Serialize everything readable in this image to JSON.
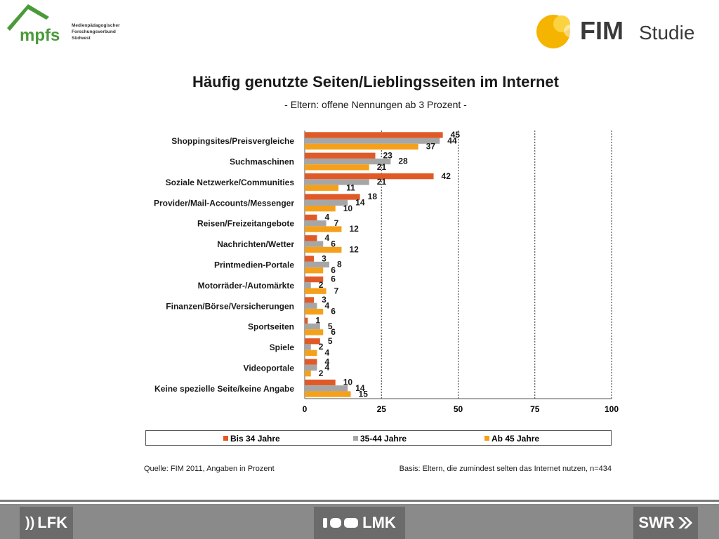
{
  "header": {
    "logo_left": {
      "name": "mpfs",
      "sub_lines": [
        "Medienpädagogischer",
        "Forschungsverbund",
        "Südwest"
      ],
      "color": "#4a9a3a"
    },
    "logo_right": {
      "name_bold": "FIM",
      "name_light": "Studie",
      "color": "#f5b400"
    }
  },
  "chart_data": {
    "type": "bar",
    "orientation": "horizontal",
    "title": "Häufig genutzte Seiten/Lieblingsseiten im Internet",
    "subtitle": "- Eltern: offene Nennungen ab 3 Prozent -",
    "categories": [
      "Shoppingsites/Preisvergleiche",
      "Suchmaschinen",
      "Soziale Netzwerke/Communities",
      "Provider/Mail-Accounts/Messenger",
      "Reisen/Freizeitangebote",
      "Nachrichten/Wetter",
      "Printmedien-Portale",
      "Motorräder-/Automärkte",
      "Finanzen/Börse/Versicherungen",
      "Sportseiten",
      "Spiele",
      "Videoportale",
      "Keine spezielle Seite/keine  Angabe"
    ],
    "series": [
      {
        "name": "Bis 34  Jahre",
        "color": "#e05a28",
        "values": [
          45,
          23,
          42,
          18,
          4,
          4,
          3,
          6,
          3,
          1,
          5,
          4,
          10
        ]
      },
      {
        "name": "35-44  Jahre",
        "color": "#a6a6a6",
        "values": [
          44,
          28,
          21,
          14,
          7,
          6,
          8,
          2,
          4,
          5,
          2,
          4,
          14
        ]
      },
      {
        "name": "Ab 45  Jahre",
        "color": "#f5a01a",
        "values": [
          37,
          21,
          11,
          10,
          12,
          12,
          6,
          7,
          6,
          6,
          4,
          2,
          15
        ]
      }
    ],
    "xlim": [
      0,
      100
    ],
    "x_ticks": [
      0,
      25,
      50,
      75,
      100
    ],
    "grid": "vertical dashed",
    "legend_position": "bottom"
  },
  "footer": {
    "source": "Quelle: FIM 2011, Angaben in Prozent",
    "basis": "Basis: Eltern, die zumindest selten das Internet nutzen, n=434"
  },
  "bottom_logos": [
    {
      "name": "LFK",
      "prefix": "))"
    },
    {
      "name": "LMK"
    },
    {
      "name": "SWR"
    }
  ]
}
